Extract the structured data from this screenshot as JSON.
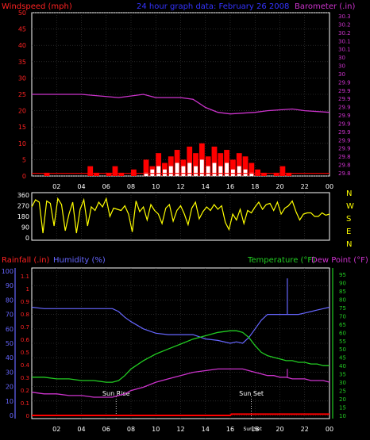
{
  "header": {
    "left_label": "Windspeed (mph)",
    "center_label": "24 hour graph data:  February 26 2008",
    "right_label": "Barometer (.in)"
  },
  "colors": {
    "background": "#000000",
    "frame": "#ffffff",
    "grid": "#404040",
    "wind": "#ff0000",
    "gust": "#ff0000",
    "wind_avg": "#ffffff",
    "barometer": "#cc33cc",
    "direction": "#ffff00",
    "rainfall": "#ff0000",
    "humidity": "#6666ff",
    "temperature": "#22cc22",
    "dewpoint": "#cc33cc",
    "sun": "#ffffff",
    "header_center": "#3333ff",
    "header_left": "#ff2222",
    "baro_axis": "#cc33cc",
    "dir_axis": "#ffff00",
    "rain_axis": "#ff2222",
    "hum_axis": "#6666ff",
    "temp_axis": "#22cc22"
  },
  "x_ticks": [
    "02",
    "04",
    "06",
    "08",
    "10",
    "12",
    "14",
    "16",
    "18",
    "20",
    "22",
    "00"
  ],
  "chart_data": [
    {
      "type": "line",
      "title": "24 hour graph data:  February 26 2008",
      "ylabel": "Windspeed (mph)",
      "y2label": "Barometer (.in)",
      "x_range": [
        0,
        24
      ],
      "ylim": [
        0,
        50
      ],
      "y_ticks": [
        0,
        5,
        10,
        15,
        20,
        25,
        30,
        35,
        40,
        45,
        50
      ],
      "y2lim": [
        29.8,
        30.3
      ],
      "y2_ticks": [
        "29.8",
        "29.8",
        "29.8",
        "29.9",
        "29.9",
        "29.9",
        "29.9",
        "29.9",
        "29.9",
        "29.9",
        "29.9",
        "29.9",
        "30",
        "30",
        "30",
        "30.1",
        "30.1",
        "30.2",
        "30.2",
        "30.3"
      ],
      "series": [
        {
          "name": "Barometer (.in)",
          "axis": "y2",
          "x": [
            0,
            4,
            7,
            9,
            10,
            12,
            13,
            14,
            15,
            16,
            18,
            19,
            21,
            22,
            24
          ],
          "y": [
            30.05,
            30.05,
            30.04,
            30.05,
            30.04,
            30.04,
            30.035,
            30.01,
            29.995,
            29.99,
            29.995,
            30.0,
            30.005,
            30.0,
            29.995
          ]
        },
        {
          "name": "Windspeed (mph)",
          "axis": "y",
          "style": "bars",
          "x": [
            0,
            1,
            2,
            3,
            4,
            4.5,
            5,
            5.5,
            6,
            6.5,
            7,
            7.5,
            8,
            8.5,
            9,
            9.5,
            10,
            10.5,
            11,
            11.5,
            12,
            12.5,
            13,
            13.5,
            14,
            14.5,
            15,
            15.5,
            16,
            16.5,
            17,
            17.5,
            18,
            18.5,
            19,
            19.5,
            20,
            20.5,
            21,
            22,
            23,
            24
          ],
          "y": [
            0,
            1,
            0,
            0,
            0,
            3,
            1,
            0,
            1,
            3,
            1,
            0,
            2,
            0,
            5,
            3,
            7,
            4,
            6,
            8,
            5,
            9,
            7,
            10,
            6,
            9,
            7,
            8,
            5,
            7,
            6,
            4,
            2,
            1,
            0,
            1,
            3,
            1,
            0,
            0,
            0,
            0
          ]
        },
        {
          "name": "Wind avg (mph)",
          "axis": "y",
          "style": "bars",
          "x": [
            9,
            9.5,
            10,
            10.5,
            11,
            11.5,
            12,
            12.5,
            13,
            13.5,
            14,
            14.5,
            15,
            15.5,
            16,
            16.5,
            17,
            17.5
          ],
          "y": [
            1,
            2,
            3,
            2,
            3,
            4,
            3,
            4,
            3,
            5,
            3,
            4,
            3,
            4,
            2,
            3,
            2,
            1
          ]
        }
      ]
    },
    {
      "type": "line",
      "ylabel": "",
      "x_range": [
        0,
        24
      ],
      "ylim": [
        0,
        360
      ],
      "y_ticks": [
        0,
        90,
        180,
        270,
        360
      ],
      "compass": [
        "N",
        "W",
        "S",
        "E",
        "N"
      ],
      "series": [
        {
          "name": "Wind direction",
          "x": [
            0,
            0.3,
            0.6,
            0.9,
            1.2,
            1.5,
            1.8,
            2.1,
            2.4,
            2.7,
            3.0,
            3.3,
            3.6,
            3.9,
            4.2,
            4.5,
            4.8,
            5.1,
            5.4,
            5.7,
            6.0,
            6.3,
            6.6,
            6.9,
            7.2,
            7.5,
            7.8,
            8.1,
            8.4,
            8.7,
            9.0,
            9.3,
            9.6,
            9.9,
            10.2,
            10.5,
            10.8,
            11.1,
            11.4,
            11.7,
            12.0,
            12.3,
            12.6,
            12.9,
            13.2,
            13.5,
            13.8,
            14.1,
            14.4,
            14.7,
            15.0,
            15.3,
            15.6,
            15.9,
            16.2,
            16.5,
            16.8,
            17.1,
            17.4,
            17.7,
            18.0,
            18.3,
            18.6,
            18.9,
            19.2,
            19.5,
            19.8,
            20.1,
            20.4,
            20.7,
            21.0,
            21.3,
            21.6,
            21.9,
            22.2,
            22.5,
            22.8,
            23.1,
            23.4,
            23.7,
            24.0
          ],
          "y": [
            260,
            320,
            300,
            40,
            310,
            290,
            100,
            330,
            280,
            60,
            200,
            300,
            40,
            240,
            320,
            100,
            260,
            230,
            300,
            260,
            330,
            180,
            250,
            240,
            230,
            270,
            200,
            50,
            310,
            220,
            260,
            150,
            280,
            230,
            200,
            120,
            250,
            280,
            140,
            230,
            270,
            200,
            110,
            250,
            300,
            160,
            220,
            260,
            230,
            280,
            240,
            270,
            130,
            70,
            200,
            150,
            240,
            120,
            230,
            210,
            260,
            300,
            240,
            280,
            290,
            230,
            300,
            200,
            250,
            270,
            310,
            220,
            150,
            200,
            210,
            210,
            180,
            180,
            210,
            190,
            200
          ]
        }
      ]
    },
    {
      "type": "line",
      "ylabel": "Rainfall (.in)",
      "y2label": "Humidity (%)",
      "y3label": "Temperature (°F)",
      "y4label": "Dew Point (°F)",
      "x_range": [
        0,
        24
      ],
      "ylim": [
        0,
        100
      ],
      "rain_ticks": [
        "0",
        "0.1",
        "0.2",
        "0.3",
        "0.4",
        "0.5",
        "0.6",
        "0.7",
        "0.8",
        "0.9",
        "1",
        "1.1"
      ],
      "hum_ticks": [
        0,
        10,
        20,
        30,
        40,
        50,
        60,
        70,
        80,
        90,
        100
      ],
      "templim": [
        10,
        95
      ],
      "temp_ticks": [
        10,
        15,
        20,
        25,
        30,
        35,
        40,
        45,
        50,
        55,
        60,
        65,
        70,
        75,
        80,
        85,
        90,
        95
      ],
      "annotations": [
        {
          "text": "Sun Rise",
          "x": 6.8
        },
        {
          "text": "Sun Set",
          "x": 17.7
        },
        {
          "text": "Sun Set",
          "x": 17.8
        }
      ],
      "series": [
        {
          "name": "Humidity (%)",
          "color_key": "humidity",
          "x": [
            0,
            1,
            2,
            3,
            4,
            5,
            6,
            6.5,
            7,
            7.5,
            8,
            9,
            10,
            11,
            12,
            13,
            14,
            15,
            16,
            16.5,
            17,
            17.5,
            18,
            18.5,
            19,
            19.5,
            20,
            20.5,
            21,
            21.5,
            22,
            22.5,
            23,
            23.5,
            24
          ],
          "y": [
            75,
            74,
            74,
            74,
            74,
            74,
            74,
            74,
            72,
            68,
            65,
            60,
            57,
            56,
            56,
            56,
            53,
            52,
            50,
            51,
            50,
            54,
            60,
            66,
            70,
            70,
            70,
            70,
            70,
            70,
            71,
            72,
            73,
            74,
            75
          ]
        },
        {
          "name": "Temperature (°F)",
          "color_key": "temperature",
          "x": [
            0,
            1,
            2,
            3,
            4,
            5,
            6,
            6.5,
            7,
            7.5,
            8,
            9,
            10,
            11,
            12,
            13,
            14,
            15,
            16,
            16.5,
            17,
            17.5,
            18,
            18.5,
            19,
            19.5,
            20,
            20.5,
            21,
            21.5,
            22,
            22.5,
            23,
            23.5,
            24
          ],
          "y": [
            33,
            33,
            32,
            32,
            31,
            31,
            30,
            30,
            31,
            34,
            38,
            43,
            47,
            50,
            53,
            56,
            58,
            60,
            61,
            61,
            60,
            57,
            52,
            48,
            46,
            45,
            44,
            43,
            43,
            42,
            42,
            41,
            41,
            40,
            40
          ]
        },
        {
          "name": "Dew Point (°F)",
          "color_key": "dewpoint",
          "x": [
            0,
            1,
            2,
            3,
            4,
            5,
            6,
            6.5,
            7,
            7.5,
            8,
            9,
            10,
            11,
            12,
            13,
            14,
            15,
            16,
            16.5,
            17,
            17.5,
            18,
            18.5,
            19,
            19.5,
            20,
            20.5,
            21,
            21.5,
            22,
            22.5,
            23,
            23.5,
            24
          ],
          "y": [
            24,
            23,
            23,
            22,
            22,
            21,
            21,
            21,
            22,
            23,
            25,
            27,
            30,
            32,
            34,
            36,
            37,
            38,
            38,
            38,
            38,
            37,
            36,
            35,
            34,
            34,
            33,
            33,
            32,
            32,
            32,
            31,
            31,
            31,
            30
          ]
        },
        {
          "name": "Rainfall (.in)",
          "color_key": "rainfall",
          "x": [
            0,
            16,
            16.1,
            24
          ],
          "y": [
            0,
            0,
            0.01,
            0.01
          ]
        }
      ]
    }
  ]
}
